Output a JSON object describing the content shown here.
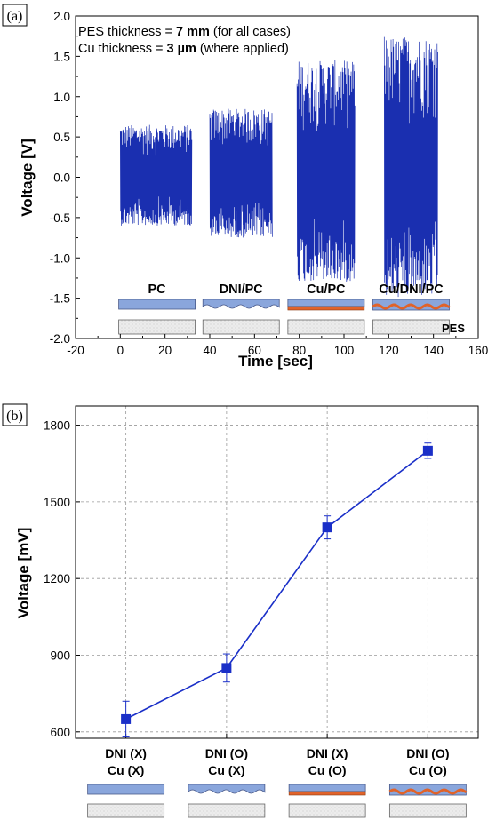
{
  "chart_data": [
    {
      "type": "line",
      "panel_label": "(a)",
      "xlabel": "Time [sec]",
      "ylabel": "Voltage [V]",
      "xlim": [
        -20,
        160
      ],
      "ylim": [
        -2.0,
        2.0
      ],
      "xticks": [
        -20,
        0,
        20,
        40,
        60,
        80,
        100,
        120,
        140,
        160
      ],
      "yticks": [
        "-2.0",
        "-1.5",
        "-1.0",
        "-0.5",
        "0.0",
        "0.5",
        "1.0",
        "1.5",
        "2.0"
      ],
      "grid": false,
      "annotations": {
        "line1": {
          "prefix": "PES thickness = ",
          "bold": "7 mm",
          "suffix": " (for all cases)"
        },
        "line2": {
          "prefix": "Cu thickness = ",
          "bold": "3 µm",
          "suffix": " (where applied)"
        }
      },
      "substrate_label": "PES",
      "series_color": "#1a2fb0",
      "segments": [
        {
          "label": "PC",
          "x_start": 0,
          "x_end": 32,
          "y_max": 0.65,
          "y_min": -0.6,
          "layer": "plain"
        },
        {
          "label": "DNI/PC",
          "x_start": 40,
          "x_end": 68,
          "y_max": 0.85,
          "y_min": -0.75,
          "layer": "wavy"
        },
        {
          "label": "Cu/PC",
          "x_start": 79,
          "x_end": 105,
          "y_max": 1.45,
          "y_min": -1.3,
          "layer": "copper"
        },
        {
          "label": "Cu/DNI/PC",
          "x_start": 118,
          "x_end": 142,
          "y_max": 1.75,
          "y_min": -1.5,
          "layer": "copper-wavy"
        }
      ]
    },
    {
      "type": "line",
      "panel_label": "(b)",
      "xlabel": "",
      "ylabel": "Voltage [mV]",
      "ylim": [
        575,
        1875
      ],
      "yticks": [
        600,
        900,
        1200,
        1500,
        1800
      ],
      "grid": true,
      "series_color": "#1a2fc8",
      "categories": [
        {
          "line1": "DNI (X)",
          "line2": "Cu (X)",
          "layer": "plain"
        },
        {
          "line1": "DNI (O)",
          "line2": "Cu (X)",
          "layer": "wavy"
        },
        {
          "line1": "DNI (X)",
          "line2": "Cu (O)",
          "layer": "copper"
        },
        {
          "line1": "DNI (O)",
          "line2": "Cu (O)",
          "layer": "copper-wavy"
        }
      ],
      "values": [
        650,
        850,
        1400,
        1700
      ],
      "errors": [
        70,
        55,
        45,
        30
      ]
    }
  ]
}
